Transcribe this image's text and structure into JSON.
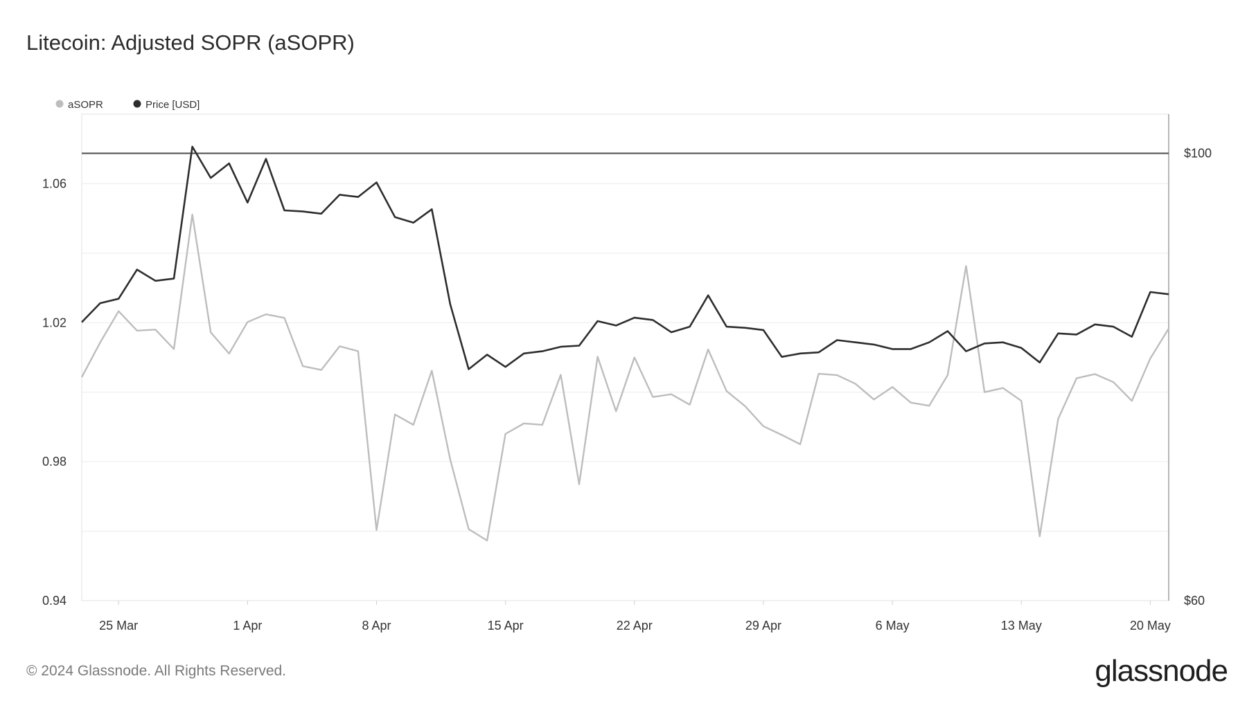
{
  "header": {
    "title": "Litecoin: Adjusted SOPR (aSOPR)"
  },
  "footer": {
    "copyright": "© 2024 Glassnode. All Rights Reserved.",
    "brand": "glassnode"
  },
  "chart_data": {
    "type": "line",
    "title": "Litecoin: Adjusted SOPR (aSOPR)",
    "x": [
      "2024-03-23",
      "2024-03-24",
      "2024-03-25",
      "2024-03-26",
      "2024-03-27",
      "2024-03-28",
      "2024-03-29",
      "2024-03-30",
      "2024-03-31",
      "2024-04-01",
      "2024-04-02",
      "2024-04-03",
      "2024-04-04",
      "2024-04-05",
      "2024-04-06",
      "2024-04-07",
      "2024-04-08",
      "2024-04-09",
      "2024-04-10",
      "2024-04-11",
      "2024-04-12",
      "2024-04-13",
      "2024-04-14",
      "2024-04-15",
      "2024-04-16",
      "2024-04-17",
      "2024-04-18",
      "2024-04-19",
      "2024-04-20",
      "2024-04-21",
      "2024-04-22",
      "2024-04-23",
      "2024-04-24",
      "2024-04-25",
      "2024-04-26",
      "2024-04-27",
      "2024-04-28",
      "2024-04-29",
      "2024-04-30",
      "2024-05-01",
      "2024-05-02",
      "2024-05-03",
      "2024-05-04",
      "2024-05-05",
      "2024-05-06",
      "2024-05-07",
      "2024-05-08",
      "2024-05-09",
      "2024-05-10",
      "2024-05-11",
      "2024-05-12",
      "2024-05-13",
      "2024-05-14",
      "2024-05-15",
      "2024-05-16",
      "2024-05-17",
      "2024-05-18",
      "2024-05-19",
      "2024-05-20",
      "2024-05-21"
    ],
    "x_ticks": [
      "25 Mar",
      "1 Apr",
      "8 Apr",
      "15 Apr",
      "22 Apr",
      "29 Apr",
      "6 May",
      "13 May",
      "20 May"
    ],
    "x_tick_dates": [
      "2024-03-25",
      "2024-04-01",
      "2024-04-08",
      "2024-04-15",
      "2024-04-22",
      "2024-04-29",
      "2024-05-06",
      "2024-05-13",
      "2024-05-20"
    ],
    "series": [
      {
        "name": "aSOPR",
        "axis": "left",
        "color": "#bdbdbd",
        "values": [
          1.0043,
          1.0143,
          1.0233,
          1.0177,
          1.018,
          1.0124,
          1.0511,
          1.0172,
          1.0111,
          1.0202,
          1.0224,
          1.0214,
          1.0075,
          1.0064,
          1.0132,
          1.0118,
          0.9603,
          0.9936,
          0.9906,
          1.0062,
          0.9806,
          0.9606,
          0.9573,
          0.988,
          0.991,
          0.9906,
          1.005,
          0.9735,
          1.0102,
          0.9945,
          1.01,
          0.9986,
          0.9994,
          0.9964,
          1.0123,
          1.0003,
          0.996,
          0.9902,
          0.9877,
          0.985,
          1.0053,
          1.0049,
          1.0024,
          0.9979,
          1.0015,
          0.997,
          0.9961,
          1.0049,
          1.0363,
          1.0,
          1.0012,
          0.9975,
          0.9585,
          0.9923,
          1.004,
          1.0052,
          1.0029,
          0.9975,
          1.0097,
          1.0183
        ]
      },
      {
        "name": "Price [USD]",
        "axis": "right",
        "color": "#2d2d2d",
        "values": [
          84.9,
          86.6,
          87.0,
          89.6,
          88.6,
          88.8,
          100.6,
          97.8,
          99.1,
          95.6,
          99.5,
          94.9,
          94.8,
          94.6,
          96.3,
          96.1,
          97.4,
          94.3,
          93.8,
          95.0,
          86.5,
          80.7,
          82.0,
          80.9,
          82.1,
          82.3,
          82.7,
          82.8,
          85.0,
          84.6,
          85.3,
          85.1,
          84.0,
          84.5,
          87.3,
          84.5,
          84.4,
          84.2,
          81.8,
          82.1,
          82.2,
          83.3,
          83.1,
          82.9,
          82.5,
          82.5,
          83.1,
          84.1,
          82.3,
          83.0,
          83.1,
          82.6,
          81.3,
          83.9,
          83.8,
          84.7,
          84.5,
          83.6,
          87.6,
          87.4
        ]
      }
    ],
    "left_axis": {
      "ticks": [
        "0.94",
        "0.98",
        "1.02",
        "1.06"
      ],
      "ylim": [
        0.94,
        1.08
      ]
    },
    "right_axis": {
      "ticks": [
        "$60",
        "$100"
      ],
      "ylim": [
        60,
        103.5
      ]
    },
    "reference_line": {
      "axis": "right",
      "value": 100,
      "color": "#555555"
    },
    "grid": true,
    "legend_position": "top-left"
  }
}
